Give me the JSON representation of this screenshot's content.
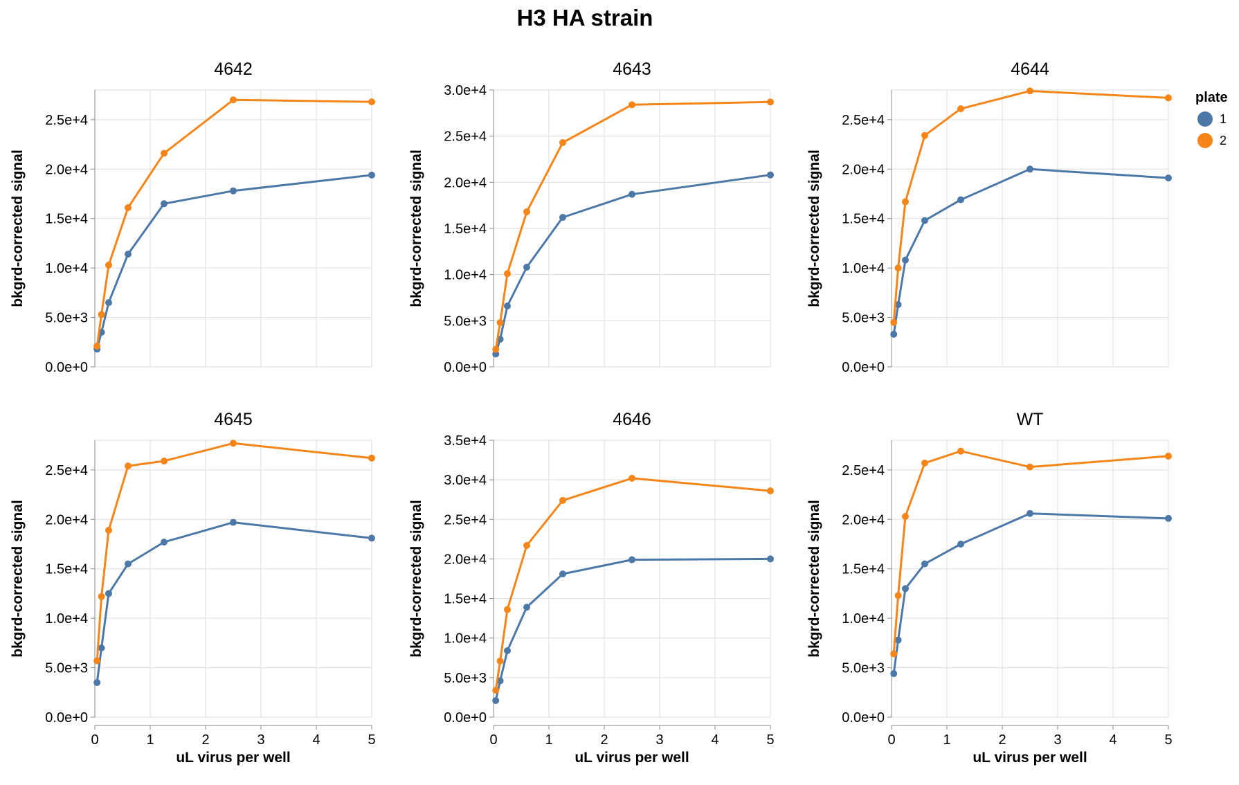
{
  "title": "H3 HA strain",
  "legend": {
    "title": "plate",
    "placement": "top-right",
    "items": [
      {
        "label": "1",
        "color": "#4c78a8"
      },
      {
        "label": "2",
        "color": "#f58518"
      }
    ]
  },
  "chart_data": [
    {
      "type": "line",
      "title": "4642",
      "xlabel": "uL virus per well",
      "ylabel": "bkgrd-corrected signal",
      "xlim": [
        0,
        5
      ],
      "ylim": [
        0,
        28000
      ],
      "x_ticks": [
        0,
        1,
        2,
        3,
        4,
        5
      ],
      "y_ticks": [
        0,
        5000,
        10000,
        15000,
        20000,
        25000
      ],
      "y_tick_labels": [
        "0.0e+0",
        "5.0e+3",
        "1.0e+4",
        "1.5e+4",
        "2.0e+4",
        "2.5e+4"
      ],
      "x": [
        0.04,
        0.12,
        0.25,
        0.6,
        1.25,
        2.5,
        5
      ],
      "series": [
        {
          "name": "1",
          "color": "#4c78a8",
          "values": [
            1800,
            3500,
            6500,
            11400,
            16500,
            17800,
            19400
          ]
        },
        {
          "name": "2",
          "color": "#f58518",
          "values": [
            2100,
            5300,
            10300,
            16100,
            21600,
            27000,
            26800
          ]
        }
      ]
    },
    {
      "type": "line",
      "title": "4643",
      "xlabel": "uL virus per well",
      "ylabel": "bkgrd-corrected signal",
      "xlim": [
        0,
        5
      ],
      "ylim": [
        0,
        30000
      ],
      "x_ticks": [
        0,
        1,
        2,
        3,
        4,
        5
      ],
      "y_ticks": [
        0,
        5000,
        10000,
        15000,
        20000,
        25000,
        30000
      ],
      "y_tick_labels": [
        "0.0e+0",
        "5.0e+3",
        "1.0e+4",
        "1.5e+4",
        "2.0e+4",
        "2.5e+4",
        "3.0e+4"
      ],
      "x": [
        0.04,
        0.12,
        0.25,
        0.6,
        1.25,
        2.5,
        5
      ],
      "series": [
        {
          "name": "1",
          "color": "#4c78a8",
          "values": [
            1400,
            3000,
            6600,
            10800,
            16200,
            18700,
            20800
          ]
        },
        {
          "name": "2",
          "color": "#f58518",
          "values": [
            1900,
            4800,
            10100,
            16800,
            24300,
            28400,
            28700
          ]
        }
      ]
    },
    {
      "type": "line",
      "title": "4644",
      "xlabel": "uL virus per well",
      "ylabel": "bkgrd-corrected signal",
      "xlim": [
        0,
        5
      ],
      "ylim": [
        0,
        28000
      ],
      "x_ticks": [
        0,
        1,
        2,
        3,
        4,
        5
      ],
      "y_ticks": [
        0,
        5000,
        10000,
        15000,
        20000,
        25000
      ],
      "y_tick_labels": [
        "0.0e+0",
        "5.0e+3",
        "1.0e+4",
        "1.5e+4",
        "2.0e+4",
        "2.5e+4"
      ],
      "x": [
        0.04,
        0.12,
        0.25,
        0.6,
        1.25,
        2.5,
        5
      ],
      "series": [
        {
          "name": "1",
          "color": "#4c78a8",
          "values": [
            3300,
            6300,
            10800,
            14800,
            16900,
            20000,
            19100
          ]
        },
        {
          "name": "2",
          "color": "#f58518",
          "values": [
            4500,
            10000,
            16700,
            23400,
            26100,
            27900,
            27200
          ]
        }
      ]
    },
    {
      "type": "line",
      "title": "4645",
      "xlabel": "uL virus per well",
      "ylabel": "bkgrd-corrected signal",
      "xlim": [
        0,
        5
      ],
      "ylim": [
        0,
        28000
      ],
      "x_ticks": [
        0,
        1,
        2,
        3,
        4,
        5
      ],
      "y_ticks": [
        0,
        5000,
        10000,
        15000,
        20000,
        25000
      ],
      "y_tick_labels": [
        "0.0e+0",
        "5.0e+3",
        "1.0e+4",
        "1.5e+4",
        "2.0e+4",
        "2.5e+4"
      ],
      "x": [
        0.04,
        0.12,
        0.25,
        0.6,
        1.25,
        2.5,
        5
      ],
      "series": [
        {
          "name": "1",
          "color": "#4c78a8",
          "values": [
            3500,
            7000,
            12500,
            15500,
            17700,
            19700,
            18100
          ]
        },
        {
          "name": "2",
          "color": "#f58518",
          "values": [
            5700,
            12200,
            18900,
            25400,
            25900,
            27700,
            26200
          ]
        }
      ]
    },
    {
      "type": "line",
      "title": "4646",
      "xlabel": "uL virus per well",
      "ylabel": "bkgrd-corrected signal",
      "xlim": [
        0,
        5
      ],
      "ylim": [
        0,
        35000
      ],
      "x_ticks": [
        0,
        1,
        2,
        3,
        4,
        5
      ],
      "y_ticks": [
        0,
        5000,
        10000,
        15000,
        20000,
        25000,
        30000,
        35000
      ],
      "y_tick_labels": [
        "0.0e+0",
        "5.0e+3",
        "1.0e+4",
        "1.5e+4",
        "2.0e+4",
        "2.5e+4",
        "3.0e+4",
        "3.5e+4"
      ],
      "x": [
        0.04,
        0.12,
        0.25,
        0.6,
        1.25,
        2.5,
        5
      ],
      "series": [
        {
          "name": "1",
          "color": "#4c78a8",
          "values": [
            2100,
            4600,
            8400,
            13900,
            18100,
            19900,
            20000
          ]
        },
        {
          "name": "2",
          "color": "#f58518",
          "values": [
            3400,
            7100,
            13600,
            21700,
            27400,
            30200,
            28600
          ]
        }
      ]
    },
    {
      "type": "line",
      "title": "WT",
      "xlabel": "uL virus per well",
      "ylabel": "bkgrd-corrected signal",
      "xlim": [
        0,
        5
      ],
      "ylim": [
        0,
        28000
      ],
      "x_ticks": [
        0,
        1,
        2,
        3,
        4,
        5
      ],
      "y_ticks": [
        0,
        5000,
        10000,
        15000,
        20000,
        25000
      ],
      "y_tick_labels": [
        "0.0e+0",
        "5.0e+3",
        "1.0e+4",
        "1.5e+4",
        "2.0e+4",
        "2.5e+4"
      ],
      "x": [
        0.04,
        0.12,
        0.25,
        0.6,
        1.25,
        2.5,
        5
      ],
      "series": [
        {
          "name": "1",
          "color": "#4c78a8",
          "values": [
            4400,
            7800,
            13000,
            15500,
            17500,
            20600,
            20100
          ]
        },
        {
          "name": "2",
          "color": "#f58518",
          "values": [
            6400,
            12300,
            20300,
            25700,
            26900,
            25300,
            26400
          ]
        }
      ]
    }
  ]
}
